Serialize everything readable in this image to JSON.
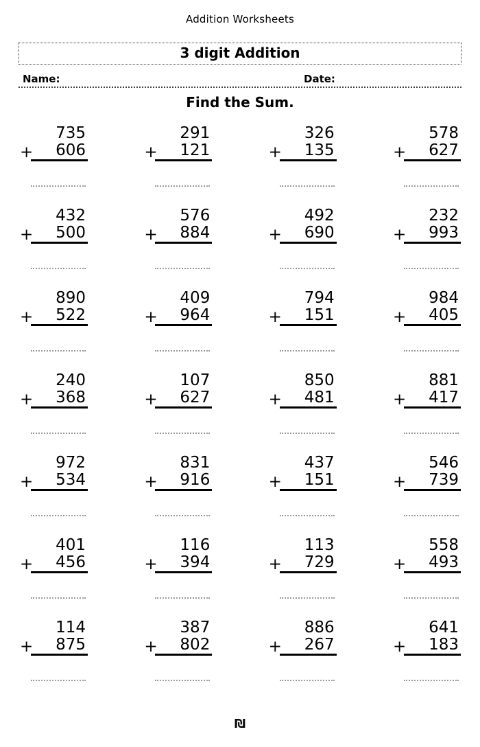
{
  "page": {
    "header_title": "Addition Worksheets",
    "worksheet_title": "3 digit Addition",
    "name_label": "Name:",
    "date_label": "Date:",
    "instruction": "Find the Sum.",
    "footer_logo_glyph": "₪"
  },
  "colors": {
    "text": "#000000",
    "rule_solid": "#000000",
    "rule_answer_dotted": "#999999",
    "rule_header_dotted": "#444444"
  },
  "problems": [
    {
      "addend1": "735",
      "operator": "+",
      "addend2": "606"
    },
    {
      "addend1": "291",
      "operator": "+",
      "addend2": "121"
    },
    {
      "addend1": "326",
      "operator": "+",
      "addend2": "135"
    },
    {
      "addend1": "578",
      "operator": "+",
      "addend2": "627"
    },
    {
      "addend1": "432",
      "operator": "+",
      "addend2": "500"
    },
    {
      "addend1": "576",
      "operator": "+",
      "addend2": "884"
    },
    {
      "addend1": "492",
      "operator": "+",
      "addend2": "690"
    },
    {
      "addend1": "232",
      "operator": "+",
      "addend2": "993"
    },
    {
      "addend1": "890",
      "operator": "+",
      "addend2": "522"
    },
    {
      "addend1": "409",
      "operator": "+",
      "addend2": "964"
    },
    {
      "addend1": "794",
      "operator": "+",
      "addend2": "151"
    },
    {
      "addend1": "984",
      "operator": "+",
      "addend2": "405"
    },
    {
      "addend1": "240",
      "operator": "+",
      "addend2": "368"
    },
    {
      "addend1": "107",
      "operator": "+",
      "addend2": "627"
    },
    {
      "addend1": "850",
      "operator": "+",
      "addend2": "481"
    },
    {
      "addend1": "881",
      "operator": "+",
      "addend2": "417"
    },
    {
      "addend1": "972",
      "operator": "+",
      "addend2": "534"
    },
    {
      "addend1": "831",
      "operator": "+",
      "addend2": "916"
    },
    {
      "addend1": "437",
      "operator": "+",
      "addend2": "151"
    },
    {
      "addend1": "546",
      "operator": "+",
      "addend2": "739"
    },
    {
      "addend1": "401",
      "operator": "+",
      "addend2": "456"
    },
    {
      "addend1": "116",
      "operator": "+",
      "addend2": "394"
    },
    {
      "addend1": "113",
      "operator": "+",
      "addend2": "729"
    },
    {
      "addend1": "558",
      "operator": "+",
      "addend2": "493"
    },
    {
      "addend1": "114",
      "operator": "+",
      "addend2": "875"
    },
    {
      "addend1": "387",
      "operator": "+",
      "addend2": "802"
    },
    {
      "addend1": "886",
      "operator": "+",
      "addend2": "267"
    },
    {
      "addend1": "641",
      "operator": "+",
      "addend2": "183"
    }
  ]
}
